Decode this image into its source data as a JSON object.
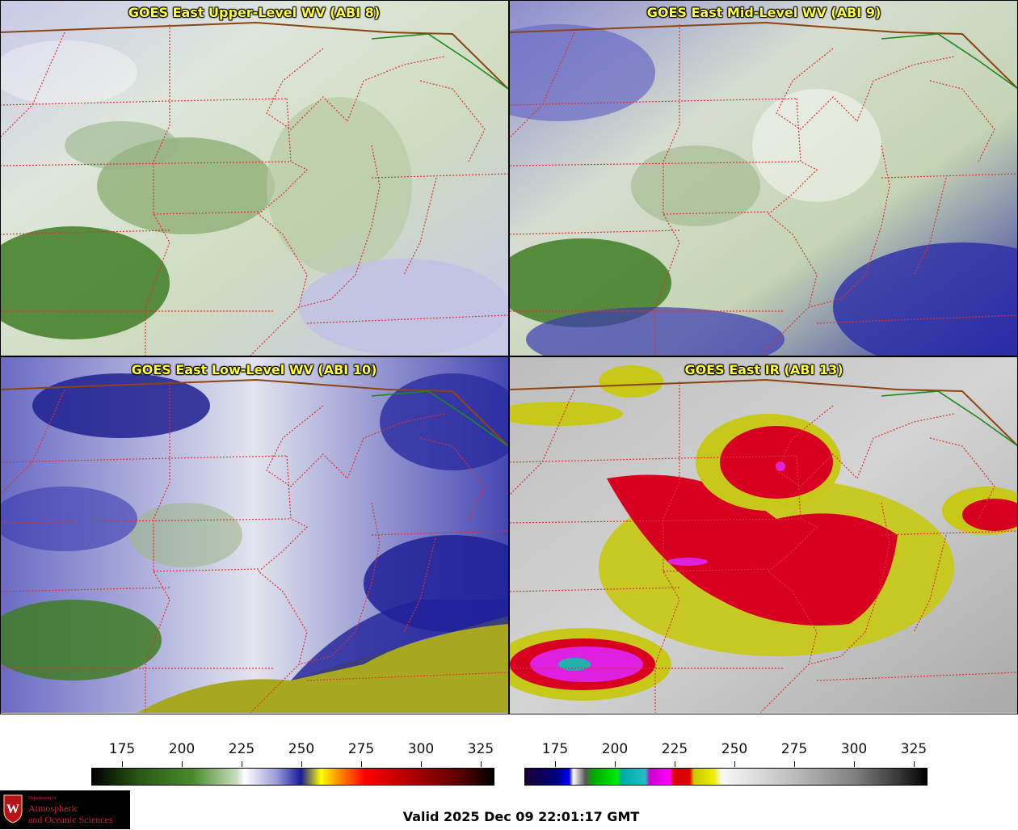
{
  "panels": {
    "upper_wv": {
      "title": "GOES East Upper-Level WV (ABI 8)"
    },
    "mid_wv": {
      "title": "GOES East Mid-Level WV (ABI 9)"
    },
    "low_wv": {
      "title": "GOES East Low-Level WV (ABI 10)"
    },
    "ir": {
      "title": "GOES East IR (ABI 13)"
    }
  },
  "colorbars": {
    "wv": {
      "ticks": [
        "175",
        "200",
        "225",
        "250",
        "275",
        "300",
        "325"
      ]
    },
    "ir": {
      "ticks": [
        "175",
        "200",
        "225",
        "250",
        "275",
        "300",
        "325"
      ]
    }
  },
  "logo": {
    "dept": "Department of",
    "line1": "Atmospheric",
    "line2": "and Oceanic Sciences",
    "shield_letter": "W"
  },
  "valid_time": "Valid 2025 Dec 09 22:01:17 GMT",
  "colors": {
    "state_borders": "#e03030",
    "country_border": "#8b4513",
    "canada_border": "#1a8a1a",
    "title_text": "#ffff33"
  }
}
